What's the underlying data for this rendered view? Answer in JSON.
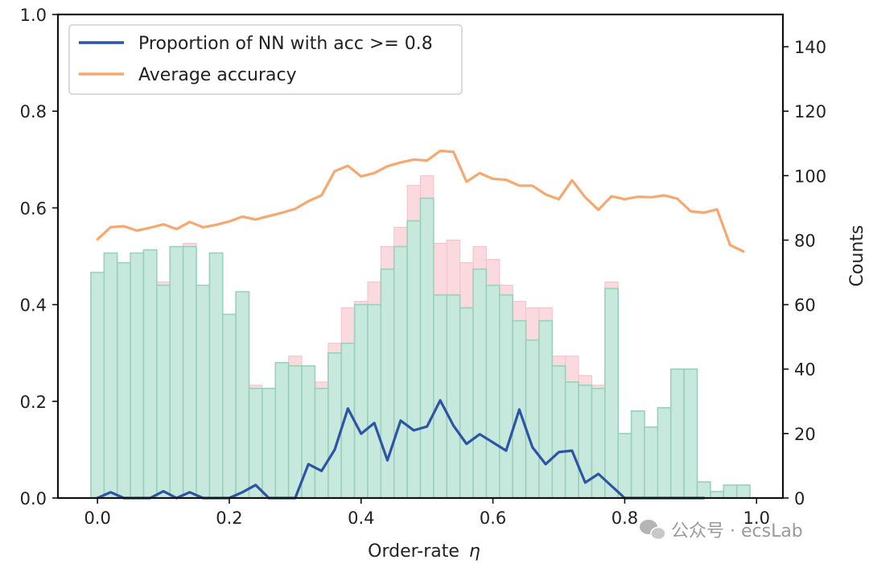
{
  "chart_data": {
    "type": "bar+line",
    "xlabel": "Order-rate",
    "xlabel_symbol": "η",
    "ylabel_left": "",
    "ylabel_right": "Counts",
    "xlim": [
      -0.06,
      1.04
    ],
    "ylim_left": [
      0,
      1.0
    ],
    "ylim_right": [
      0,
      150
    ],
    "xticks": [
      "0.0",
      "0.2",
      "0.4",
      "0.6",
      "0.8",
      "1.0"
    ],
    "yticks_left": [
      "0.0",
      "0.2",
      "0.4",
      "0.6",
      "0.8",
      "1.0"
    ],
    "yticks_right": [
      "0",
      "20",
      "40",
      "60",
      "80",
      "100",
      "120",
      "140"
    ],
    "legend_position": "top-left",
    "histogram": {
      "bin_width": 0.02,
      "bin_starts": [
        -0.01,
        0.01,
        0.03,
        0.05,
        0.07,
        0.09,
        0.11,
        0.13,
        0.15,
        0.17,
        0.19,
        0.21,
        0.23,
        0.25,
        0.27,
        0.29,
        0.31,
        0.33,
        0.35,
        0.37,
        0.39,
        0.41,
        0.43,
        0.45,
        0.47,
        0.49,
        0.51,
        0.53,
        0.55,
        0.57,
        0.59,
        0.61,
        0.63,
        0.65,
        0.67,
        0.69,
        0.71,
        0.73,
        0.75,
        0.77,
        0.79,
        0.81,
        0.83,
        0.85,
        0.87,
        0.89,
        0.91,
        0.93,
        0.95,
        0.97
      ],
      "background_counts": [
        70,
        76,
        73,
        76,
        77,
        67,
        78,
        79,
        66,
        76,
        57,
        64,
        35,
        34,
        42,
        44,
        41,
        36,
        48,
        59,
        61,
        67,
        78,
        84,
        97,
        100,
        79,
        80,
        73,
        78,
        74,
        66,
        61,
        59,
        59,
        44,
        44,
        38,
        35,
        67,
        20,
        27,
        22,
        28,
        40,
        40,
        5,
        2,
        4,
        4
      ],
      "foreground_counts": [
        70,
        76,
        73,
        76,
        77,
        66,
        78,
        78,
        66,
        76,
        57,
        64,
        34,
        34,
        42,
        41,
        41,
        34,
        45,
        48,
        60,
        60,
        71,
        78,
        86,
        93,
        63,
        63,
        59,
        71,
        66,
        63,
        55,
        49,
        55,
        41,
        36,
        35,
        34,
        65,
        20,
        27,
        22,
        28,
        40,
        40,
        5,
        2,
        4,
        4
      ],
      "background_color": "#fad9df",
      "foreground_color": "#c7e8dc",
      "edge_color": "#9ccfbc"
    },
    "series": [
      {
        "name": "Proportion of NN with acc >= 0.8",
        "color": "#2e55a5",
        "x": [
          0.0,
          0.02,
          0.04,
          0.06,
          0.08,
          0.1,
          0.12,
          0.14,
          0.16,
          0.18,
          0.2,
          0.22,
          0.24,
          0.26,
          0.28,
          0.3,
          0.32,
          0.34,
          0.36,
          0.38,
          0.4,
          0.42,
          0.44,
          0.46,
          0.48,
          0.5,
          0.52,
          0.54,
          0.56,
          0.58,
          0.6,
          0.62,
          0.64,
          0.66,
          0.68,
          0.7,
          0.72,
          0.74,
          0.76,
          0.78,
          0.8,
          0.82,
          0.84,
          0.86,
          0.88,
          0.9,
          0.92
        ],
        "y": [
          0.0,
          0.012,
          0.0,
          0.0,
          0.0,
          0.014,
          0.0,
          0.012,
          0.0,
          0.0,
          0.0,
          0.012,
          0.027,
          0.0,
          0.0,
          0.0,
          0.07,
          0.056,
          0.1,
          0.185,
          0.133,
          0.155,
          0.078,
          0.16,
          0.14,
          0.148,
          0.202,
          0.15,
          0.112,
          0.132,
          0.115,
          0.098,
          0.183,
          0.105,
          0.07,
          0.095,
          0.098,
          0.032,
          0.05,
          0.025,
          0.0,
          0.0,
          0.0,
          0.0,
          0.0,
          0.0,
          0.0
        ]
      },
      {
        "name": "Average accuracy",
        "color": "#f6a86f",
        "x": [
          0.0,
          0.02,
          0.04,
          0.06,
          0.08,
          0.1,
          0.12,
          0.14,
          0.16,
          0.18,
          0.2,
          0.22,
          0.24,
          0.26,
          0.28,
          0.3,
          0.32,
          0.34,
          0.36,
          0.38,
          0.4,
          0.42,
          0.44,
          0.46,
          0.48,
          0.5,
          0.52,
          0.54,
          0.56,
          0.58,
          0.6,
          0.62,
          0.64,
          0.66,
          0.68,
          0.7,
          0.72,
          0.74,
          0.76,
          0.78,
          0.8,
          0.82,
          0.84,
          0.86,
          0.88,
          0.9,
          0.92,
          0.94,
          0.96,
          0.98
        ],
        "y": [
          0.535,
          0.56,
          0.562,
          0.553,
          0.559,
          0.566,
          0.556,
          0.571,
          0.56,
          0.565,
          0.572,
          0.582,
          0.576,
          0.583,
          0.59,
          0.598,
          0.614,
          0.626,
          0.676,
          0.687,
          0.665,
          0.672,
          0.686,
          0.694,
          0.7,
          0.698,
          0.718,
          0.716,
          0.654,
          0.672,
          0.66,
          0.658,
          0.646,
          0.646,
          0.628,
          0.618,
          0.657,
          0.622,
          0.596,
          0.624,
          0.618,
          0.623,
          0.622,
          0.626,
          0.619,
          0.593,
          0.59,
          0.597,
          0.523,
          0.51
        ]
      }
    ],
    "watermark": "公众号 · ecsLab"
  }
}
